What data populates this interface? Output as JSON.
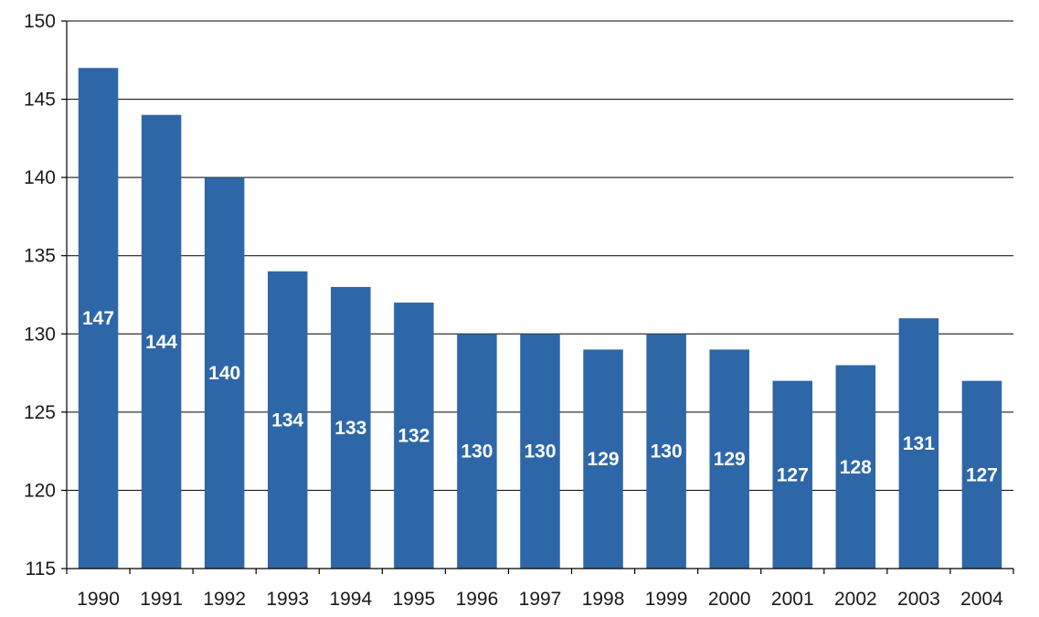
{
  "chart_data": {
    "type": "bar",
    "title": "",
    "xlabel": "",
    "ylabel": "",
    "categories": [
      "1990",
      "1991",
      "1992",
      "1993",
      "1994",
      "1995",
      "1996",
      "1997",
      "1998",
      "1999",
      "2000",
      "2001",
      "2002",
      "2003",
      "2004"
    ],
    "values": [
      147,
      144,
      140,
      134,
      133,
      132,
      130,
      130,
      129,
      130,
      129,
      127,
      128,
      131,
      127
    ],
    "data_labels": [
      "147",
      "144",
      "140",
      "134",
      "133",
      "132",
      "130",
      "130",
      "129",
      "130",
      "129",
      "127",
      "128",
      "131",
      "127"
    ],
    "ylim": [
      115,
      150
    ],
    "y_ticks": [
      115,
      120,
      125,
      130,
      135,
      140,
      145,
      150
    ],
    "y_tick_labels": [
      "115",
      "120",
      "125",
      "130",
      "135",
      "140",
      "145",
      "150"
    ],
    "grid": true,
    "legend": "none",
    "colors": {
      "bar": "#2e67a8",
      "grid": "#000000",
      "label": "#ffffff"
    }
  }
}
